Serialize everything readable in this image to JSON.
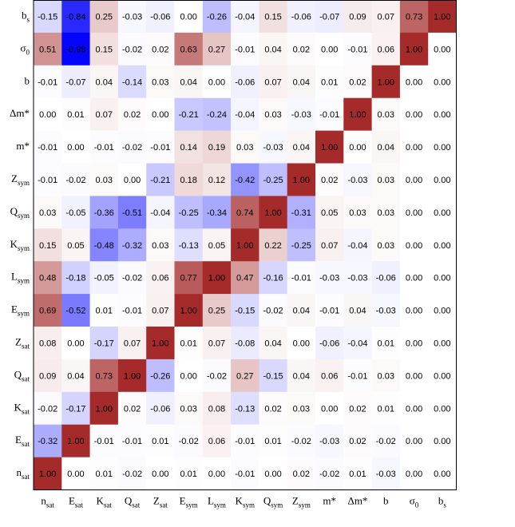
{
  "chart_data": {
    "type": "heatmap",
    "title": "",
    "xlabel": "",
    "ylabel": "",
    "columns": [
      "n_sat",
      "E_sat",
      "K_sat",
      "Q_sat",
      "Z_sat",
      "E_sym",
      "L_sym",
      "K_sym",
      "Q_sym",
      "Z_sym",
      "m*",
      "Δm*",
      "b",
      "σ_0",
      "b_s"
    ],
    "rows": [
      "b_s",
      "σ_0",
      "b",
      "Δm*",
      "m*",
      "Z_sym",
      "Q_sym",
      "K_sym",
      "L_sym",
      "E_sym",
      "Z_sat",
      "Q_sat",
      "K_sat",
      "E_sat",
      "n_sat"
    ],
    "values": [
      [
        -0.15,
        -0.84,
        0.25,
        -0.03,
        -0.06,
        -0.0,
        -0.26,
        -0.04,
        0.15,
        -0.06,
        -0.07,
        0.09,
        0.07,
        0.73,
        1.0
      ],
      [
        0.51,
        -0.98,
        0.15,
        -0.02,
        0.02,
        0.63,
        0.27,
        -0.01,
        0.04,
        0.02,
        -0.0,
        -0.01,
        0.06,
        1.0,
        0.0
      ],
      [
        -0.01,
        -0.07,
        0.04,
        -0.14,
        0.03,
        0.04,
        0.0,
        -0.06,
        0.07,
        0.04,
        0.01,
        0.02,
        1.0,
        0.0,
        0.0
      ],
      [
        -0.0,
        0.01,
        0.07,
        0.02,
        0.0,
        -0.21,
        -0.24,
        -0.04,
        0.03,
        -0.03,
        -0.01,
        1.0,
        0.03,
        0.0,
        0.0
      ],
      [
        -0.01,
        0.0,
        -0.01,
        -0.02,
        -0.01,
        0.14,
        0.19,
        0.03,
        -0.03,
        0.04,
        1.0,
        -0.0,
        0.04,
        0.0,
        0.0
      ],
      [
        -0.01,
        -0.02,
        0.03,
        0.0,
        -0.21,
        0.18,
        0.12,
        -0.42,
        -0.25,
        1.0,
        0.02,
        -0.03,
        0.03,
        0.0,
        0.0
      ],
      [
        0.03,
        -0.05,
        -0.36,
        -0.51,
        -0.04,
        -0.25,
        -0.34,
        0.74,
        1.0,
        -0.31,
        0.05,
        0.03,
        0.03,
        0.0,
        0.0
      ],
      [
        0.15,
        0.05,
        -0.48,
        -0.32,
        0.03,
        -0.13,
        0.05,
        1.0,
        0.22,
        -0.25,
        0.07,
        -0.04,
        0.03,
        0.0,
        0.0
      ],
      [
        0.48,
        -0.18,
        -0.05,
        -0.02,
        0.06,
        0.77,
        1.0,
        0.47,
        -0.16,
        -0.01,
        -0.03,
        -0.03,
        -0.06,
        0.0,
        0.0
      ],
      [
        0.69,
        -0.52,
        0.01,
        -0.01,
        0.07,
        1.0,
        0.25,
        -0.15,
        -0.02,
        0.04,
        -0.01,
        0.04,
        -0.03,
        0.0,
        0.0
      ],
      [
        0.08,
        0.0,
        -0.17,
        0.07,
        1.0,
        0.01,
        0.07,
        -0.08,
        0.04,
        -0.0,
        -0.06,
        -0.04,
        0.01,
        0.0,
        0.0
      ],
      [
        0.09,
        0.04,
        0.73,
        1.0,
        -0.26,
        0.0,
        -0.02,
        0.27,
        -0.15,
        0.04,
        0.06,
        -0.01,
        0.03,
        0.0,
        0.0
      ],
      [
        -0.02,
        -0.17,
        1.0,
        0.02,
        -0.06,
        0.03,
        0.08,
        -0.13,
        0.02,
        0.03,
        0.0,
        0.02,
        0.01,
        0.0,
        0.0
      ],
      [
        -0.32,
        1.0,
        -0.01,
        -0.01,
        0.01,
        -0.02,
        0.06,
        -0.01,
        0.01,
        -0.02,
        -0.03,
        0.02,
        -0.02,
        0.0,
        0.0
      ],
      [
        1.0,
        0.0,
        0.01,
        -0.02,
        0.0,
        0.01,
        -0.0,
        -0.01,
        -0.0,
        0.02,
        -0.02,
        0.01,
        -0.03,
        0.0,
        0.0
      ]
    ],
    "value_range": [
      -1,
      1
    ],
    "colors": {
      "negative": "#0000ff",
      "neutral": "#ffffff",
      "positive": "#a52a2a"
    },
    "grid": false,
    "legend": "none"
  }
}
